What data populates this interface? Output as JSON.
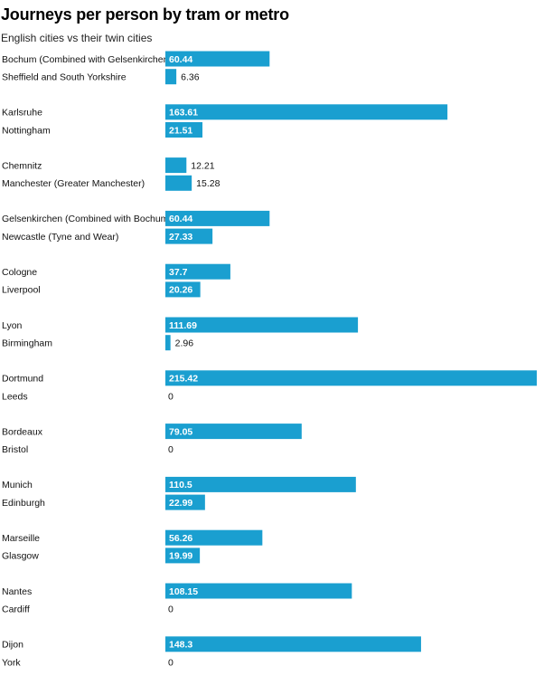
{
  "title": "Journeys per person by tram or metro",
  "subtitle": "English cities vs their twin cities",
  "colors": {
    "bar": "#1a9fd0",
    "label_inside": "#ffffff",
    "label_outside": "#111111"
  },
  "chart_data": {
    "type": "bar",
    "orientation": "horizontal",
    "title": "Journeys per person by tram or metro",
    "subtitle": "English cities vs their twin cities",
    "grid": false,
    "legend": "none",
    "xlim": [
      0,
      215.42
    ],
    "groups": [
      {
        "items": [
          {
            "label": "Bochum (Combined with Gelsenkirchen)",
            "value": 60.44,
            "display": "60.44"
          },
          {
            "label": "Sheffield and South Yorkshire",
            "value": 6.36,
            "display": "6.36"
          }
        ]
      },
      {
        "items": [
          {
            "label": "Karlsruhe",
            "value": 163.61,
            "display": "163.61"
          },
          {
            "label": "Nottingham",
            "value": 21.51,
            "display": "21.51"
          }
        ]
      },
      {
        "items": [
          {
            "label": "Chemnitz",
            "value": 12.21,
            "display": "12.21"
          },
          {
            "label": "Manchester (Greater Manchester)",
            "value": 15.28,
            "display": "15.28"
          }
        ]
      },
      {
        "items": [
          {
            "label": "Gelsenkirchen (Combined with Bochum)",
            "value": 60.44,
            "display": "60.44"
          },
          {
            "label": "Newcastle (Tyne and Wear)",
            "value": 27.33,
            "display": "27.33"
          }
        ]
      },
      {
        "items": [
          {
            "label": "Cologne",
            "value": 37.7,
            "display": "37.7"
          },
          {
            "label": "Liverpool",
            "value": 20.26,
            "display": "20.26"
          }
        ]
      },
      {
        "items": [
          {
            "label": "Lyon",
            "value": 111.69,
            "display": "111.69"
          },
          {
            "label": "Birmingham",
            "value": 2.96,
            "display": "2.96"
          }
        ]
      },
      {
        "items": [
          {
            "label": "Dortmund",
            "value": 215.42,
            "display": "215.42"
          },
          {
            "label": "Leeds",
            "value": 0,
            "display": "0"
          }
        ]
      },
      {
        "items": [
          {
            "label": "Bordeaux",
            "value": 79.05,
            "display": "79.05"
          },
          {
            "label": "Bristol",
            "value": 0,
            "display": "0"
          }
        ]
      },
      {
        "items": [
          {
            "label": "Munich",
            "value": 110.5,
            "display": "110.5"
          },
          {
            "label": "Edinburgh",
            "value": 22.99,
            "display": "22.99"
          }
        ]
      },
      {
        "items": [
          {
            "label": "Marseille",
            "value": 56.26,
            "display": "56.26"
          },
          {
            "label": "Glasgow",
            "value": 19.99,
            "display": "19.99"
          }
        ]
      },
      {
        "items": [
          {
            "label": "Nantes",
            "value": 108.15,
            "display": "108.15"
          },
          {
            "label": "Cardiff",
            "value": 0,
            "display": "0"
          }
        ]
      },
      {
        "items": [
          {
            "label": "Dijon",
            "value": 148.3,
            "display": "148.3"
          },
          {
            "label": "York",
            "value": 0,
            "display": "0"
          }
        ]
      }
    ]
  }
}
